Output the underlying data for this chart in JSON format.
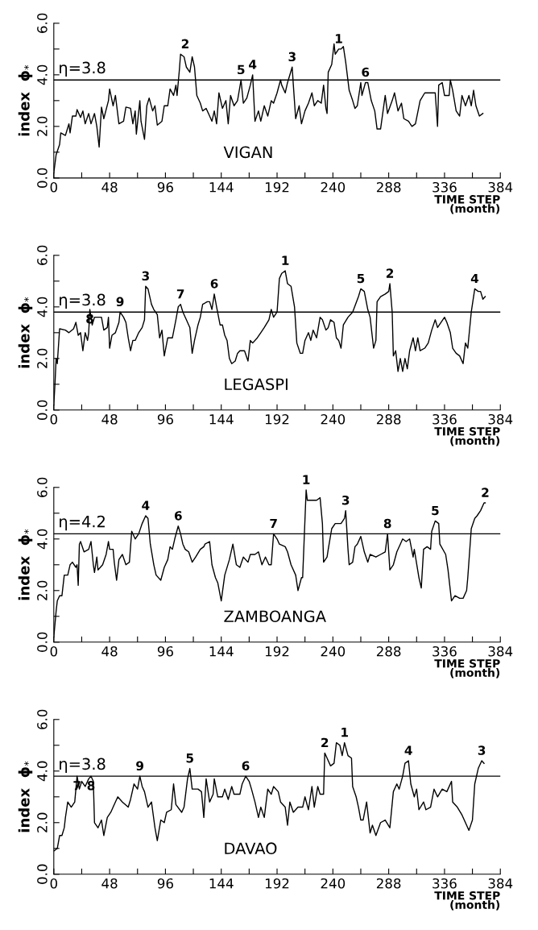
{
  "chart_data": [
    {
      "type": "line",
      "xlabel": "TIME STEP\n(month)",
      "ylabel": "index  ϕ$_{*}$",
      "xlim": [
        0,
        384
      ],
      "ylim": [
        0,
        6
      ],
      "xticks": [
        0,
        {
          "value": 24,
          "label": null
        },
        48,
        {
          "value": 72,
          "label": null
        },
        96,
        {
          "value": 120,
          "label": null
        },
        144,
        {
          "value": 168,
          "label": null
        },
        192,
        {
          "value": 216,
          "label": null
        },
        240,
        {
          "value": 264,
          "label": null
        },
        288,
        {
          "value": 312,
          "label": null
        },
        336,
        {
          "value": 360,
          "label": null
        },
        384
      ],
      "yticks": [
        {
          "value": 0,
          "label": "0.0"
        },
        {
          "value": 1,
          "label": null
        },
        {
          "value": 2,
          "label": "2.0"
        },
        {
          "value": 3,
          "label": null
        },
        {
          "value": 4,
          "label": "4.0"
        },
        {
          "value": 5,
          "label": null
        },
        {
          "value": 6,
          "label": "6.0"
        }
      ],
      "grid": false,
      "legend": false,
      "ref_lines": [
        {
          "axis": "y",
          "value": 3.8,
          "label": "η=3.8"
        }
      ],
      "series": [
        {
          "color": "#000000",
          "x": [
            0,
            2,
            5,
            6,
            10,
            13,
            14,
            16,
            19,
            20,
            23,
            25,
            27,
            30,
            32,
            35,
            37,
            39,
            41,
            43,
            47,
            48,
            51,
            53,
            56,
            60,
            62,
            66,
            68,
            70,
            71,
            74,
            75,
            78,
            80,
            82,
            85,
            87,
            89,
            93,
            95,
            98,
            100,
            103,
            105,
            106,
            108,
            109,
            112,
            114,
            117,
            119,
            121,
            123,
            126,
            128,
            131,
            134,
            136,
            138,
            140,
            142,
            145,
            148,
            150,
            152,
            155,
            158,
            161,
            163,
            166,
            169,
            171,
            173,
            176,
            178,
            181,
            184,
            187,
            189,
            192,
            195,
            196,
            199,
            201,
            205,
            206,
            208,
            211,
            213,
            216,
            219,
            222,
            224,
            227,
            230,
            232,
            234,
            235,
            236,
            239,
            241,
            242,
            245,
            247,
            249,
            251,
            254,
            257,
            259,
            261,
            264,
            265,
            268,
            270,
            273,
            276,
            278,
            281,
            285,
            287,
            291,
            293,
            296,
            299,
            301,
            305,
            308,
            311,
            315,
            319,
            323,
            328,
            330,
            331,
            334,
            336,
            340,
            341,
            343,
            346,
            349,
            351,
            354,
            357,
            359,
            361,
            363,
            366,
            369
          ],
          "values": [
            0.2,
            0.9,
            1.3,
            1.75,
            1.65,
            2.1,
            1.75,
            2.4,
            2.4,
            2.65,
            2.35,
            2.6,
            2.1,
            2.5,
            2.1,
            2.5,
            2.0,
            1.2,
            2.75,
            2.3,
            3.0,
            3.45,
            2.8,
            3.2,
            2.1,
            2.2,
            2.75,
            2.7,
            2.1,
            2.6,
            1.7,
            3.0,
            2.2,
            1.5,
            2.8,
            3.1,
            2.6,
            2.8,
            2.05,
            2.2,
            2.8,
            2.8,
            3.45,
            3.2,
            3.6,
            3.2,
            4.2,
            4.8,
            4.7,
            4.3,
            4.1,
            4.7,
            4.3,
            3.2,
            2.9,
            2.6,
            2.7,
            2.4,
            2.2,
            2.6,
            2.1,
            3.3,
            2.7,
            3.0,
            2.1,
            3.2,
            2.8,
            3.0,
            3.8,
            2.9,
            3.1,
            3.6,
            4.0,
            2.2,
            2.6,
            2.2,
            2.8,
            2.4,
            3.0,
            2.9,
            3.3,
            3.8,
            3.6,
            3.3,
            3.7,
            4.3,
            3.6,
            2.3,
            2.8,
            2.1,
            2.6,
            2.9,
            3.3,
            2.8,
            3.0,
            2.9,
            3.6,
            2.7,
            2.5,
            4.1,
            4.4,
            5.2,
            4.8,
            5.0,
            5.0,
            5.1,
            4.5,
            3.4,
            3.0,
            2.7,
            2.8,
            3.7,
            3.2,
            3.7,
            3.7,
            3.0,
            2.6,
            1.9,
            1.9,
            3.2,
            2.5,
            3.0,
            3.3,
            2.6,
            2.9,
            2.3,
            2.2,
            2.0,
            2.1,
            3.0,
            3.3,
            3.3,
            3.3,
            2.0,
            3.6,
            3.7,
            3.2,
            3.2,
            3.8,
            3.4,
            2.6,
            2.4,
            3.2,
            2.8,
            3.2,
            2.8,
            3.4,
            2.8,
            2.4,
            2.5
          ]
        }
      ],
      "annotations": [
        "VIGAN",
        {
          "text": "1",
          "x": 245,
          "y": 5.0
        },
        {
          "text": "2",
          "x": 113,
          "y": 4.8
        },
        {
          "text": "3",
          "x": 205,
          "y": 4.3
        },
        {
          "text": "4",
          "x": 171,
          "y": 4.0
        },
        {
          "text": "5",
          "x": 161,
          "y": 3.8
        },
        {
          "text": "6",
          "x": 268,
          "y": 3.7
        }
      ]
    },
    {
      "type": "line",
      "xlabel": "TIME STEP\n(month)",
      "ylabel": "index  ϕ$_{*}$",
      "xlim": [
        0,
        384
      ],
      "ylim": [
        0,
        6
      ],
      "xticks": [
        0,
        {
          "value": 24,
          "label": null
        },
        48,
        {
          "value": 72,
          "label": null
        },
        96,
        {
          "value": 120,
          "label": null
        },
        144,
        {
          "value": 168,
          "label": null
        },
        192,
        {
          "value": 216,
          "label": null
        },
        240,
        {
          "value": 264,
          "label": null
        },
        288,
        {
          "value": 312,
          "label": null
        },
        336,
        {
          "value": 360,
          "label": null
        },
        384
      ],
      "yticks": [
        {
          "value": 0,
          "label": "0.0"
        },
        {
          "value": 1,
          "label": null
        },
        {
          "value": 2,
          "label": "2.0"
        },
        {
          "value": 3,
          "label": null
        },
        {
          "value": 4,
          "label": "4.0"
        },
        {
          "value": 5,
          "label": null
        },
        {
          "value": 6,
          "label": "6.0"
        }
      ],
      "grid": false,
      "legend": false,
      "ref_lines": [
        {
          "axis": "y",
          "value": 3.8,
          "label": "η=3.8"
        }
      ],
      "series": [
        {
          "color": "#000000",
          "x": [
            0,
            1,
            2,
            3,
            5,
            10,
            13,
            17,
            19,
            21,
            23,
            25,
            27,
            29,
            30,
            31,
            33,
            35,
            38,
            41,
            43,
            46,
            47,
            48,
            50,
            53,
            56,
            57,
            60,
            62,
            64,
            66,
            68,
            70,
            73,
            76,
            78,
            79,
            81,
            84,
            86,
            89,
            91,
            93,
            95,
            98,
            102,
            105,
            107,
            109,
            111,
            114,
            117,
            119,
            121,
            124,
            126,
            128,
            132,
            134,
            136,
            138,
            140,
            143,
            145,
            147,
            149,
            151,
            153,
            156,
            158,
            160,
            162,
            164,
            167,
            169,
            171,
            175,
            178,
            181,
            185,
            187,
            189,
            192,
            194,
            196,
            199,
            201,
            204,
            207,
            209,
            212,
            214,
            216,
            219,
            221,
            223,
            226,
            229,
            231,
            234,
            236,
            238,
            241,
            243,
            245,
            247,
            249,
            253,
            257,
            262,
            264,
            267,
            270,
            272,
            275,
            277,
            278,
            281,
            285,
            288,
            289,
            291,
            292,
            294,
            296,
            298,
            300,
            302,
            304,
            306,
            309,
            311,
            313,
            315,
            319,
            322,
            325,
            328,
            330,
            336,
            338,
            341,
            343,
            346,
            349,
            352,
            354,
            356,
            359,
            362,
            365,
            367,
            369,
            371
          ],
          "values": [
            0.2,
            1.0,
            2.0,
            1.8,
            3.15,
            3.1,
            3.0,
            3.15,
            3.4,
            2.9,
            3.0,
            2.3,
            3.0,
            2.7,
            3.0,
            3.9,
            3.3,
            3.6,
            3.6,
            3.6,
            3.1,
            3.2,
            3.6,
            2.4,
            2.9,
            3.0,
            3.4,
            3.8,
            3.6,
            3.4,
            2.8,
            2.3,
            2.7,
            2.7,
            3.0,
            3.2,
            3.5,
            4.8,
            4.7,
            4.1,
            3.9,
            3.7,
            2.8,
            3.1,
            2.1,
            2.8,
            2.8,
            3.5,
            4.0,
            4.1,
            3.8,
            3.5,
            3.2,
            2.2,
            2.7,
            3.3,
            3.6,
            4.1,
            4.2,
            4.2,
            3.9,
            4.5,
            4.0,
            3.3,
            3.3,
            2.9,
            2.7,
            2.0,
            1.8,
            1.9,
            2.2,
            2.3,
            2.3,
            2.3,
            1.9,
            2.7,
            2.6,
            2.8,
            3.0,
            3.2,
            3.5,
            3.9,
            3.6,
            3.8,
            5.1,
            5.3,
            5.4,
            4.9,
            4.8,
            4.0,
            2.6,
            2.2,
            2.2,
            2.7,
            3.0,
            2.7,
            3.1,
            2.8,
            3.6,
            3.5,
            3.1,
            3.2,
            3.5,
            3.4,
            2.8,
            2.7,
            2.4,
            3.3,
            3.6,
            3.8,
            4.4,
            4.7,
            4.6,
            3.9,
            3.6,
            2.4,
            2.7,
            4.2,
            4.4,
            4.5,
            4.6,
            4.9,
            3.8,
            2.1,
            2.3,
            1.5,
            2.0,
            1.5,
            2.0,
            1.6,
            2.3,
            2.8,
            2.3,
            2.8,
            2.3,
            2.4,
            2.6,
            3.1,
            3.5,
            3.2,
            3.6,
            3.4,
            3.0,
            2.4,
            2.2,
            2.1,
            1.8,
            2.6,
            2.4,
            3.8,
            4.7,
            4.6,
            4.6,
            4.3,
            4.4
          ]
        }
      ],
      "annotations": [
        "LEGASPI",
        {
          "text": "1",
          "x": 199,
          "y": 5.4
        },
        {
          "text": "2",
          "x": 289,
          "y": 4.9
        },
        {
          "text": "3",
          "x": 79,
          "y": 4.8
        },
        {
          "text": "4",
          "x": 362,
          "y": 4.7
        },
        {
          "text": "5",
          "x": 264,
          "y": 4.7
        },
        {
          "text": "6",
          "x": 138,
          "y": 4.5
        },
        {
          "text": "7",
          "x": 109,
          "y": 4.1
        },
        {
          "text": "8",
          "x": 31,
          "y": 3.9
        },
        {
          "text": "9",
          "x": 57,
          "y": 3.8
        }
      ]
    },
    {
      "type": "line",
      "xlabel": "TIME STEP\n(month)",
      "ylabel": "index  ϕ$_{*}$",
      "xlim": [
        0,
        384
      ],
      "ylim": [
        0,
        6
      ],
      "xticks": [
        0,
        {
          "value": 24,
          "label": null
        },
        48,
        {
          "value": 72,
          "label": null
        },
        96,
        {
          "value": 120,
          "label": null
        },
        144,
        {
          "value": 168,
          "label": null
        },
        192,
        {
          "value": 216,
          "label": null
        },
        240,
        {
          "value": 264,
          "label": null
        },
        288,
        {
          "value": 312,
          "label": null
        },
        336,
        {
          "value": 360,
          "label": null
        },
        384
      ],
      "yticks": [
        {
          "value": 0,
          "label": "0.0"
        },
        {
          "value": 1,
          "label": null
        },
        {
          "value": 2,
          "label": "2.0"
        },
        {
          "value": 3,
          "label": null
        },
        {
          "value": 4,
          "label": "4.0"
        },
        {
          "value": 5,
          "label": null
        },
        {
          "value": 6,
          "label": "6.0"
        }
      ],
      "grid": false,
      "legend": false,
      "ref_lines": [
        {
          "axis": "y",
          "value": 4.2,
          "label": "η=4.2"
        }
      ],
      "series": [
        {
          "color": "#000000",
          "x": [
            0,
            2,
            3,
            5,
            7,
            9,
            12,
            14,
            16,
            19,
            20,
            21,
            22,
            23,
            26,
            30,
            32,
            34,
            35,
            37,
            38,
            42,
            45,
            47,
            48,
            51,
            52,
            54,
            56,
            59,
            62,
            65,
            67,
            70,
            73,
            76,
            79,
            81,
            83,
            86,
            88,
            92,
            95,
            98,
            100,
            102,
            104,
            107,
            109,
            111,
            113,
            116,
            119,
            122,
            126,
            129,
            130,
            134,
            136,
            139,
            141,
            144,
            147,
            151,
            154,
            157,
            160,
            163,
            167,
            169,
            173,
            176,
            179,
            182,
            185,
            187,
            189,
            192,
            194,
            199,
            201,
            204,
            208,
            210,
            213,
            214,
            217,
            218,
            222,
            226,
            229,
            231,
            232,
            235,
            236,
            239,
            242,
            247,
            250,
            251,
            253,
            254,
            257,
            259,
            261,
            264,
            267,
            270,
            272,
            277,
            281,
            285,
            287,
            289,
            292,
            295,
            298,
            300,
            303,
            306,
            309,
            310,
            314,
            316,
            318,
            321,
            324,
            325,
            328,
            331,
            332,
            337,
            339,
            342,
            345,
            349,
            352,
            355,
            356,
            359,
            362,
            364,
            367,
            370,
            371
          ],
          "values": [
            0.2,
            1.2,
            1.6,
            1.8,
            1.8,
            2.6,
            2.6,
            3.0,
            3.1,
            2.9,
            3.0,
            2.2,
            3.8,
            3.9,
            3.5,
            3.6,
            3.9,
            3.0,
            2.7,
            3.3,
            2.8,
            3.0,
            3.4,
            3.9,
            3.6,
            3.6,
            3.1,
            2.4,
            3.2,
            3.4,
            3.0,
            3.1,
            4.3,
            4.0,
            4.2,
            4.6,
            4.9,
            4.8,
            3.8,
            3.0,
            2.6,
            2.4,
            2.9,
            3.2,
            3.7,
            3.6,
            4.0,
            4.5,
            4.2,
            3.8,
            3.6,
            3.5,
            3.1,
            3.3,
            3.6,
            3.7,
            3.8,
            3.9,
            3.0,
            2.5,
            2.3,
            1.6,
            2.6,
            3.2,
            3.8,
            3.0,
            2.9,
            3.3,
            3.1,
            3.4,
            3.4,
            3.5,
            3.0,
            3.3,
            3.0,
            3.0,
            4.2,
            4.0,
            3.8,
            3.7,
            3.5,
            3.0,
            2.6,
            2.0,
            2.5,
            2.5,
            5.9,
            5.5,
            5.5,
            5.5,
            5.6,
            4.6,
            3.1,
            3.3,
            3.6,
            4.4,
            4.6,
            4.6,
            4.8,
            5.1,
            3.6,
            3.0,
            3.1,
            3.7,
            3.8,
            4.1,
            3.5,
            3.1,
            3.4,
            3.3,
            3.4,
            3.5,
            4.2,
            2.8,
            3.0,
            3.5,
            3.8,
            4.0,
            3.9,
            4.0,
            3.3,
            3.6,
            2.5,
            2.1,
            3.6,
            3.7,
            3.6,
            4.3,
            4.7,
            4.6,
            3.8,
            3.4,
            2.8,
            1.6,
            1.8,
            1.7,
            1.7,
            2.0,
            2.5,
            4.4,
            4.8,
            4.9,
            5.1,
            5.4,
            5.4
          ]
        }
      ],
      "annotations": [
        "ZAMBOANGA",
        {
          "text": "1",
          "x": 217,
          "y": 5.9
        },
        {
          "text": "2",
          "x": 371,
          "y": 5.4
        },
        {
          "text": "3",
          "x": 251,
          "y": 5.1
        },
        {
          "text": "4",
          "x": 79,
          "y": 4.9
        },
        {
          "text": "5",
          "x": 328,
          "y": 4.7
        },
        {
          "text": "6",
          "x": 107,
          "y": 4.5
        },
        {
          "text": "7",
          "x": 189,
          "y": 4.2
        },
        {
          "text": "8",
          "x": 287,
          "y": 4.2
        }
      ]
    },
    {
      "type": "line",
      "xlabel": "TIME STEP\n(month)",
      "ylabel": "index  ϕ$_{*}$",
      "xlim": [
        0,
        384
      ],
      "ylim": [
        0,
        6
      ],
      "xticks": [
        0,
        {
          "value": 24,
          "label": null
        },
        48,
        {
          "value": 72,
          "label": null
        },
        96,
        {
          "value": 120,
          "label": null
        },
        144,
        {
          "value": 168,
          "label": null
        },
        192,
        {
          "value": 216,
          "label": null
        },
        240,
        {
          "value": 264,
          "label": null
        },
        288,
        {
          "value": 312,
          "label": null
        },
        336,
        {
          "value": 360,
          "label": null
        },
        384
      ],
      "yticks": [
        {
          "value": 0,
          "label": "0.0"
        },
        {
          "value": 1,
          "label": null
        },
        {
          "value": 2,
          "label": "2.0"
        },
        {
          "value": 3,
          "label": null
        },
        {
          "value": 4,
          "label": "4.0"
        },
        {
          "value": 5,
          "label": null
        },
        {
          "value": 6,
          "label": "6.0"
        }
      ],
      "grid": false,
      "legend": false,
      "ref_lines": [
        {
          "axis": "y",
          "value": 3.8,
          "label": "η=3.8"
        }
      ],
      "series": [
        {
          "color": "#000000",
          "x": [
            0,
            3,
            5,
            7,
            9,
            10,
            12,
            15,
            18,
            20,
            22,
            24,
            27,
            30,
            32,
            34,
            35,
            38,
            41,
            43,
            46,
            49,
            51,
            55,
            59,
            64,
            66,
            69,
            72,
            74,
            76,
            78,
            81,
            84,
            87,
            89,
            92,
            95,
            97,
            101,
            103,
            105,
            110,
            112,
            115,
            117,
            119,
            124,
            127,
            129,
            131,
            134,
            137,
            138,
            141,
            145,
            147,
            150,
            153,
            155,
            160,
            162,
            165,
            168,
            170,
            173,
            176,
            178,
            181,
            184,
            187,
            189,
            193,
            195,
            199,
            201,
            203,
            206,
            210,
            214,
            216,
            219,
            222,
            224,
            227,
            229,
            232,
            233,
            235,
            238,
            241,
            243,
            246,
            248,
            250,
            253,
            256,
            257,
            260,
            262,
            264,
            266,
            269,
            272,
            274,
            277,
            281,
            285,
            289,
            292,
            295,
            297,
            300,
            302,
            305,
            307,
            310,
            312,
            314,
            318,
            320,
            324,
            327,
            330,
            334,
            338,
            342,
            343,
            347,
            351,
            356,
            357,
            360,
            362,
            365,
            368,
            370
          ],
          "values": [
            0.9,
            1.0,
            1.5,
            1.5,
            1.8,
            2.2,
            2.8,
            2.6,
            2.8,
            3.8,
            3.3,
            3.6,
            3.4,
            3.7,
            3.8,
            3.6,
            2.0,
            1.8,
            2.1,
            1.5,
            2.2,
            2.4,
            2.6,
            3.0,
            2.8,
            2.6,
            2.9,
            3.5,
            3.3,
            3.8,
            3.4,
            3.2,
            2.6,
            2.8,
            1.8,
            1.3,
            2.1,
            2.0,
            2.4,
            2.5,
            3.5,
            2.7,
            2.4,
            2.6,
            3.7,
            4.1,
            3.3,
            3.3,
            3.2,
            2.2,
            3.7,
            2.8,
            3.1,
            3.7,
            3.0,
            3.0,
            3.3,
            2.9,
            3.4,
            3.1,
            3.1,
            3.5,
            3.8,
            3.6,
            3.3,
            2.8,
            2.2,
            2.6,
            2.2,
            3.3,
            3.1,
            3.4,
            3.2,
            2.8,
            2.6,
            1.9,
            2.8,
            2.4,
            2.6,
            2.6,
            3.0,
            2.5,
            3.4,
            2.6,
            3.4,
            3.1,
            3.1,
            4.7,
            4.5,
            4.2,
            4.3,
            5.1,
            5.0,
            4.6,
            5.1,
            4.6,
            4.5,
            3.4,
            3.0,
            2.6,
            2.1,
            2.1,
            2.8,
            1.6,
            1.9,
            1.5,
            2.0,
            2.1,
            1.8,
            3.2,
            3.5,
            3.3,
            3.8,
            4.3,
            4.4,
            3.5,
            3.0,
            3.3,
            2.5,
            2.8,
            2.5,
            2.6,
            3.3,
            3.0,
            3.3,
            3.2,
            3.6,
            2.8,
            2.6,
            2.3,
            1.8,
            1.7,
            2.1,
            3.5,
            4.1,
            4.4,
            4.3
          ]
        }
      ],
      "annotations": [
        "DAVAO",
        {
          "text": "1",
          "x": 250,
          "y": 5.1
        },
        {
          "text": "2",
          "x": 233,
          "y": 4.7
        },
        {
          "text": "3",
          "x": 368,
          "y": 4.4
        },
        {
          "text": "4",
          "x": 305,
          "y": 4.4
        },
        {
          "text": "5",
          "x": 117,
          "y": 4.1
        },
        {
          "text": "6",
          "x": 165,
          "y": 3.8
        },
        {
          "text": "7",
          "x": 20,
          "y": 3.8
        },
        {
          "text": "8",
          "x": 32,
          "y": 3.8
        },
        {
          "text": "9",
          "x": 74,
          "y": 3.8
        }
      ]
    }
  ]
}
